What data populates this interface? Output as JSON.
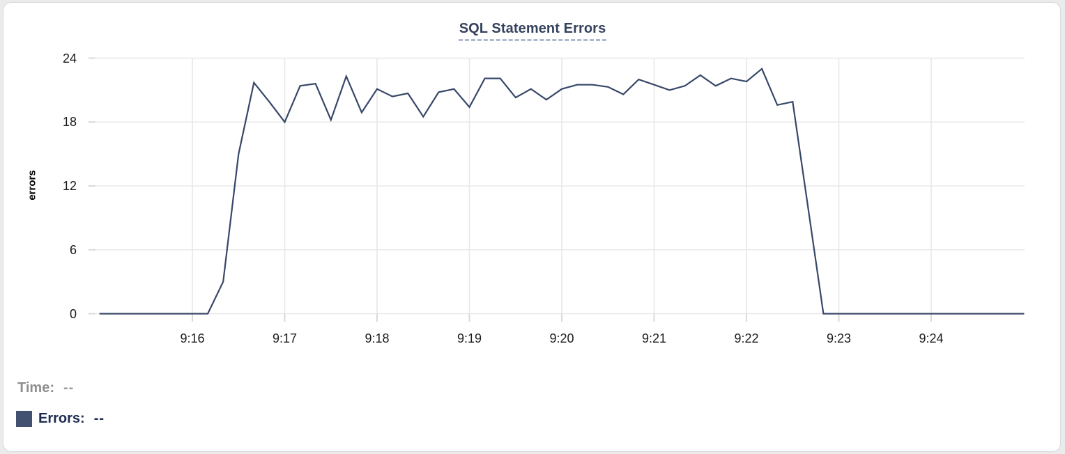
{
  "colors": {
    "line": "#374769",
    "swatch": "#41516f",
    "title": "#35425e",
    "title_underline": "#aeb8ce",
    "grid": "#e8e8e8",
    "tick": "#d9d9d9",
    "axis_text": "#1a1a1e",
    "time_label": "#8e8e8e",
    "time_value": "#9b9b9b",
    "errors_label": "#1d2b50",
    "errors_value": "#1d2b50"
  },
  "readout": {
    "time_label": "Time:",
    "time_value": "--",
    "errors_label": "Errors:",
    "errors_value": "--"
  },
  "chart_data": {
    "type": "line",
    "title": "SQL Statement Errors",
    "xlabel": "",
    "ylabel": "errors",
    "ylim": [
      0,
      24
    ],
    "y_ticks": [
      0,
      6,
      12,
      18,
      24
    ],
    "x_tick_labels": [
      "9:16",
      "9:17",
      "9:18",
      "9:19",
      "9:20",
      "9:21",
      "9:22",
      "9:23",
      "9:24"
    ],
    "x_range": [
      "9:15:00",
      "9:25:00"
    ],
    "grid": true,
    "legend_position": "bottom-left",
    "series": [
      {
        "name": "Errors",
        "color": "#374769",
        "start_time": "9:15:00",
        "interval_seconds": 10,
        "points": [
          [
            "9:15:00",
            0
          ],
          [
            "9:15:10",
            0
          ],
          [
            "9:15:20",
            0
          ],
          [
            "9:15:30",
            0
          ],
          [
            "9:15:40",
            0
          ],
          [
            "9:15:50",
            0
          ],
          [
            "9:16:00",
            0
          ],
          [
            "9:16:10",
            0
          ],
          [
            "9:16:20",
            3
          ],
          [
            "9:16:30",
            15
          ],
          [
            "9:16:40",
            21.7
          ],
          [
            "9:16:50",
            19.9
          ],
          [
            "9:17:00",
            18
          ],
          [
            "9:17:10",
            21.4
          ],
          [
            "9:17:20",
            21.6
          ],
          [
            "9:17:30",
            18.2
          ],
          [
            "9:17:40",
            22.3
          ],
          [
            "9:17:50",
            18.9
          ],
          [
            "9:18:00",
            21.1
          ],
          [
            "9:18:10",
            20.4
          ],
          [
            "9:18:20",
            20.7
          ],
          [
            "9:18:30",
            18.5
          ],
          [
            "9:18:40",
            20.8
          ],
          [
            "9:18:50",
            21.1
          ],
          [
            "9:19:00",
            19.4
          ],
          [
            "9:19:10",
            22.1
          ],
          [
            "9:19:20",
            22.1
          ],
          [
            "9:19:30",
            20.3
          ],
          [
            "9:19:40",
            21.1
          ],
          [
            "9:19:50",
            20.1
          ],
          [
            "9:20:00",
            21.1
          ],
          [
            "9:20:10",
            21.5
          ],
          [
            "9:20:20",
            21.5
          ],
          [
            "9:20:30",
            21.3
          ],
          [
            "9:20:40",
            20.6
          ],
          [
            "9:20:50",
            22
          ],
          [
            "9:21:00",
            21.5
          ],
          [
            "9:21:10",
            21
          ],
          [
            "9:21:20",
            21.4
          ],
          [
            "9:21:30",
            22.4
          ],
          [
            "9:21:40",
            21.4
          ],
          [
            "9:21:50",
            22.1
          ],
          [
            "9:22:00",
            21.8
          ],
          [
            "9:22:10",
            23
          ],
          [
            "9:22:20",
            19.6
          ],
          [
            "9:22:30",
            19.9
          ],
          [
            "9:22:40",
            10
          ],
          [
            "9:22:50",
            0
          ],
          [
            "9:23:00",
            0
          ],
          [
            "9:23:10",
            0
          ],
          [
            "9:23:20",
            0
          ],
          [
            "9:23:30",
            0
          ],
          [
            "9:23:40",
            0
          ],
          [
            "9:23:50",
            0
          ],
          [
            "9:24:00",
            0
          ],
          [
            "9:24:10",
            0
          ],
          [
            "9:24:20",
            0
          ],
          [
            "9:24:30",
            0
          ],
          [
            "9:24:40",
            0
          ],
          [
            "9:24:50",
            0
          ],
          [
            "9:25:00",
            0
          ]
        ]
      }
    ]
  }
}
